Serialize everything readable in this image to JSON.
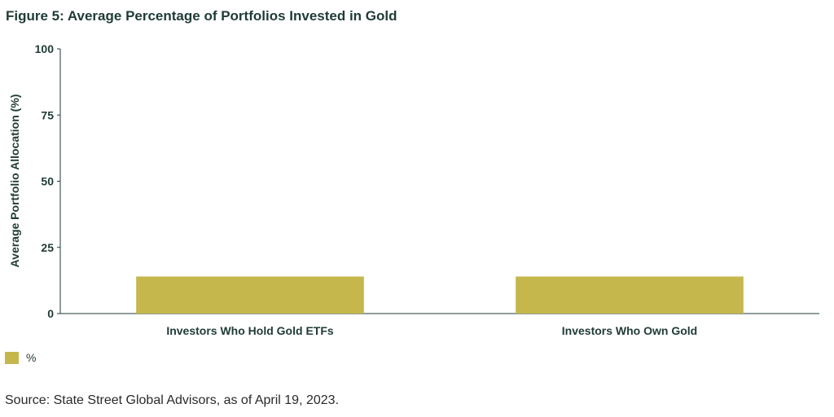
{
  "figure": {
    "title": "Figure 5: Average Percentage of Portfolios Invested in Gold",
    "source": "Source: State Street Global Advisors, as of April 19, 2023."
  },
  "colors": {
    "bar": "#c5b74c",
    "axis": "#1f3b36",
    "text": "#1f3b36"
  },
  "chart_data": {
    "type": "bar",
    "title": "Figure 5: Average Percentage of Portfolios Invested in Gold",
    "xlabel": "",
    "ylabel": "Average Portfolio Allocation (%)",
    "categories": [
      "Investors Who Hold Gold ETFs",
      "Investors Who Own Gold"
    ],
    "series": [
      {
        "name": "%",
        "values": [
          14,
          14
        ]
      }
    ],
    "ylim": [
      0,
      100
    ],
    "yticks": [
      0,
      25,
      50,
      75,
      100
    ],
    "grid": false,
    "legend": "bottom-left"
  }
}
